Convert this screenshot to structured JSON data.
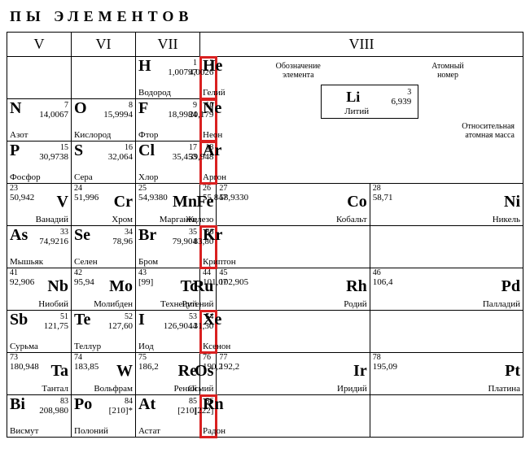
{
  "title": "ПЫ ЭЛЕМЕНТОВ",
  "headers": [
    "V",
    "VI",
    "VII",
    "VIII"
  ],
  "legend": {
    "top_left": "Обозначение элемента",
    "top_right": "Атомный номер",
    "sym": "Li",
    "num": "3",
    "mass": "6,939",
    "name": "Литий",
    "bottom": "Относительная атомная масса"
  },
  "rows": [
    [
      {
        "align": "l",
        "empty": true
      },
      {
        "align": "l",
        "empty": true
      },
      {
        "align": "l",
        "sym": "H",
        "num": "1",
        "mass": "1,00797",
        "name": "Водород"
      },
      {
        "align": "l",
        "sym": "He",
        "num": "2",
        "mass": "4,0026",
        "name": "Гелий",
        "hl": true
      },
      {
        "legend": true
      }
    ],
    [
      {
        "align": "l",
        "sym": "N",
        "num": "7",
        "mass": "14,0067",
        "name": "Азот"
      },
      {
        "align": "l",
        "sym": "O",
        "num": "8",
        "mass": "15,9994",
        "name": "Кислород"
      },
      {
        "align": "l",
        "sym": "F",
        "num": "9",
        "mass": "18,9984",
        "name": "Фтор"
      },
      {
        "align": "l",
        "sym": "Ne",
        "num": "10",
        "mass": "20,179",
        "name": "Неон",
        "hl": true
      }
    ],
    [
      {
        "align": "l",
        "sym": "P",
        "num": "15",
        "mass": "30,9738",
        "name": "Фосфор"
      },
      {
        "align": "l",
        "sym": "S",
        "num": "16",
        "mass": "32,064",
        "name": "Сера"
      },
      {
        "align": "l",
        "sym": "Cl",
        "num": "17",
        "mass": "35,453",
        "name": "Хлор"
      },
      {
        "align": "l",
        "sym": "Ar",
        "num": "18",
        "mass": "39,948",
        "name": "Аргон",
        "hl": true
      }
    ],
    [
      {
        "align": "r",
        "sym": "V",
        "num": "23",
        "mass": "50,942",
        "name": "Ванадий"
      },
      {
        "align": "r",
        "sym": "Cr",
        "num": "24",
        "mass": "51,996",
        "name": "Хром"
      },
      {
        "align": "r",
        "sym": "Mn",
        "num": "25",
        "mass": "54,9380",
        "name": "Марганец"
      },
      {
        "align": "r",
        "sym": "Fe",
        "num": "26",
        "mass": "55,847",
        "name": "Железо"
      },
      {
        "align": "r",
        "sym": "Co",
        "num": "27",
        "mass": "58,9330",
        "name": "Кобальт"
      },
      {
        "align": "r",
        "sym": "Ni",
        "num": "28",
        "mass": "58,71",
        "name": "Никель"
      }
    ],
    [
      {
        "align": "l",
        "sym": "As",
        "num": "33",
        "mass": "74,9216",
        "name": "Мышьяк"
      },
      {
        "align": "l",
        "sym": "Se",
        "num": "34",
        "mass": "78,96",
        "name": "Селен"
      },
      {
        "align": "l",
        "sym": "Br",
        "num": "35",
        "mass": "79,904",
        "name": "Бром"
      },
      {
        "align": "l",
        "sym": "Kr",
        "num": "36",
        "mass": "83,80",
        "name": "Криптон",
        "hl": true
      },
      {
        "align": "l",
        "empty": true
      },
      {
        "align": "l",
        "empty": true
      }
    ],
    [
      {
        "align": "r",
        "sym": "Nb",
        "num": "41",
        "mass": "92,906",
        "name": "Ниобий"
      },
      {
        "align": "r",
        "sym": "Mo",
        "num": "42",
        "mass": "95,94",
        "name": "Молибден"
      },
      {
        "align": "r",
        "sym": "Tc",
        "num": "43",
        "mass": "[99]",
        "name": "Технеций"
      },
      {
        "align": "r",
        "sym": "Ru",
        "num": "44",
        "mass": "101,07",
        "name": "Рутений"
      },
      {
        "align": "r",
        "sym": "Rh",
        "num": "45",
        "mass": "102,905",
        "name": "Родий"
      },
      {
        "align": "r",
        "sym": "Pd",
        "num": "46",
        "mass": "106,4",
        "name": "Палладий"
      }
    ],
    [
      {
        "align": "l",
        "sym": "Sb",
        "num": "51",
        "mass": "121,75",
        "name": "Сурьма"
      },
      {
        "align": "l",
        "sym": "Te",
        "num": "52",
        "mass": "127,60",
        "name": "Теллур"
      },
      {
        "align": "l",
        "sym": "I",
        "num": "53",
        "mass": "126,9044",
        "name": "Иод"
      },
      {
        "align": "l",
        "sym": "Xe",
        "num": "54",
        "mass": "131,30",
        "name": "Ксенон",
        "hl": true
      },
      {
        "align": "l",
        "empty": true
      },
      {
        "align": "l",
        "empty": true
      }
    ],
    [
      {
        "align": "r",
        "sym": "Ta",
        "num": "73",
        "mass": "180,948",
        "name": "Тантал"
      },
      {
        "align": "r",
        "sym": "W",
        "num": "74",
        "mass": "183,85",
        "name": "Вольфрам"
      },
      {
        "align": "r",
        "sym": "Re",
        "num": "75",
        "mass": "186,2",
        "name": "Рений"
      },
      {
        "align": "r",
        "sym": "Os",
        "num": "76",
        "mass": "190,2",
        "name": "Осмий"
      },
      {
        "align": "r",
        "sym": "Ir",
        "num": "77",
        "mass": "192,2",
        "name": "Иридий"
      },
      {
        "align": "r",
        "sym": "Pt",
        "num": "78",
        "mass": "195,09",
        "name": "Платина"
      }
    ],
    [
      {
        "align": "l",
        "sym": "Bi",
        "num": "83",
        "mass": "208,980",
        "name": "Висмут"
      },
      {
        "align": "l",
        "sym": "Po",
        "num": "84",
        "mass": "[210]*",
        "name": "Полоний"
      },
      {
        "align": "l",
        "sym": "At",
        "num": "85",
        "mass": "[210]",
        "name": "Астат"
      },
      {
        "align": "l",
        "sym": "Rn",
        "num": "86",
        "mass": "[222]",
        "name": "Радон",
        "hl": true
      },
      {
        "align": "l",
        "empty": true
      },
      {
        "align": "l",
        "empty": true
      }
    ]
  ]
}
